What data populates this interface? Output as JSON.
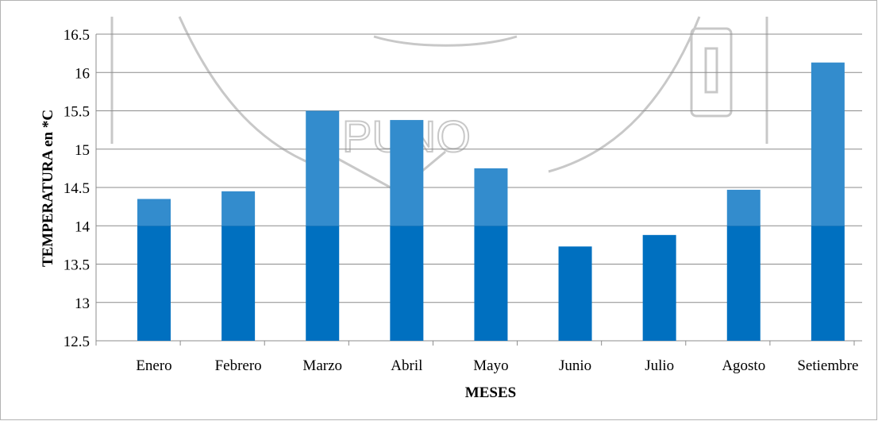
{
  "chart_data": {
    "type": "bar",
    "categories": [
      "Enero",
      "Febrero",
      "Marzo",
      "Abril",
      "Mayo",
      "Junio",
      "Julio",
      "Agosto",
      "Setiembre"
    ],
    "values": [
      14.35,
      14.45,
      15.5,
      15.38,
      14.75,
      13.73,
      13.88,
      14.47,
      16.13
    ],
    "xlabel": "MESES",
    "ylabel": "TEMPERATURA  en *C",
    "ylim": [
      12.5,
      16.5
    ],
    "yticks": [
      "12.5",
      "13",
      "13.5",
      "14",
      "14.5",
      "15",
      "15.5",
      "16",
      "16.5"
    ],
    "grid": true,
    "legend": "none",
    "colors": {
      "bar": "#0070c0",
      "bar_upper": "#338ccd",
      "grid": "#8c8c8c"
    }
  },
  "watermark": {
    "text": "PUNO"
  }
}
